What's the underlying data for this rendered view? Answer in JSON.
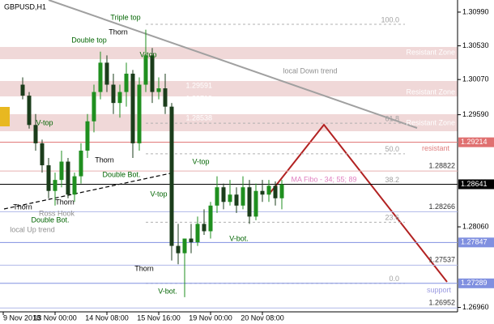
{
  "chart_data": {
    "type": "candlestick",
    "symbol": "GBPUSD,H1",
    "categories": [
      "9 Nov 2018",
      null,
      null,
      null,
      null,
      null,
      null,
      null,
      "13 Nov 00:00",
      null,
      null,
      null,
      null,
      null,
      null,
      null,
      "14 Nov 08:00",
      null,
      null,
      null,
      null,
      null,
      null,
      null,
      "15 Nov 16:00",
      null,
      null,
      null,
      null,
      null,
      null,
      null,
      "19 Nov 00:00",
      null,
      null,
      null,
      null,
      null,
      null,
      null,
      "20 Nov 08:00",
      null,
      null,
      null
    ],
    "open": [
      null,
      null,
      null,
      1.3,
      1.2985,
      1.2945,
      1.292,
      1.289,
      1.2855,
      1.287,
      1.2895,
      1.285,
      1.2875,
      1.291,
      1.295,
      1.299,
      1.303,
      1.3,
      1.2975,
      1.299,
      1.3015,
      1.292,
      1.3,
      1.304,
      1.299,
      1.2995,
      1.297,
      1.278,
      1.277,
      1.279,
      1.2785,
      1.281,
      1.28,
      1.2835,
      1.286,
      1.284,
      1.285,
      1.2835,
      1.286,
      1.282,
      1.2855,
      1.285,
      1.2862,
      1.2845
    ],
    "high": [
      null,
      null,
      null,
      1.301,
      1.299,
      1.296,
      1.2925,
      1.29,
      1.288,
      1.291,
      1.29,
      1.288,
      1.292,
      1.296,
      1.3,
      1.3045,
      1.304,
      1.3015,
      1.3,
      1.303,
      1.302,
      1.301,
      1.3075,
      1.305,
      1.301,
      1.3015,
      1.2975,
      1.281,
      1.279,
      1.281,
      1.282,
      1.283,
      1.284,
      1.2875,
      1.2865,
      1.287,
      1.286,
      1.2875,
      1.287,
      1.2865,
      1.287,
      1.287,
      1.2868,
      1.287
    ],
    "low": [
      null,
      null,
      null,
      1.298,
      1.294,
      1.291,
      1.288,
      1.2845,
      1.2835,
      1.286,
      1.2845,
      1.284,
      1.2865,
      1.29,
      1.2935,
      1.298,
      1.299,
      1.296,
      1.2955,
      1.297,
      1.29,
      1.291,
      1.299,
      1.2975,
      1.298,
      1.296,
      1.276,
      1.2755,
      1.271,
      1.277,
      1.278,
      1.2795,
      1.279,
      1.2825,
      1.283,
      1.2835,
      1.2825,
      1.283,
      1.281,
      1.2815,
      1.284,
      1.284,
      1.2835,
      1.283
    ],
    "close": [
      null,
      null,
      null,
      1.2985,
      1.2945,
      1.292,
      1.289,
      1.2855,
      1.287,
      1.2895,
      1.285,
      1.2875,
      1.291,
      1.295,
      1.299,
      1.303,
      1.3,
      1.2975,
      1.299,
      1.3015,
      1.292,
      1.3,
      1.304,
      1.299,
      1.2995,
      1.297,
      1.278,
      1.277,
      1.279,
      1.2785,
      1.281,
      1.28,
      1.2835,
      1.286,
      1.284,
      1.285,
      1.2835,
      1.286,
      1.282,
      1.2855,
      1.285,
      1.2862,
      1.2845,
      1.2864
    ],
    "up_color": "#1f8f1f",
    "down_color": "#1b3d1b",
    "ylim": [
      1.269,
      1.311
    ],
    "yticks": [
      {
        "value": 1.3099,
        "label": "1.30990"
      },
      {
        "value": 1.3053,
        "label": "1.30530"
      },
      {
        "value": 1.3007,
        "label": "1.30070"
      },
      {
        "value": 1.2959,
        "label": "1.29590"
      },
      {
        "value": 1.2806,
        "label": "1.28060"
      },
      {
        "value": 1.2696,
        "label": "1.26960"
      }
    ],
    "fibo": [
      {
        "label": "100.0",
        "value": 1.30824
      },
      {
        "label": "61.8",
        "value": 1.29474
      },
      {
        "label": "50.0",
        "value": 1.29057
      },
      {
        "label": "38.2",
        "value": 1.28641
      },
      {
        "label": "23.6",
        "value": 1.28123
      },
      {
        "label": "0.0",
        "value": 1.27289
      }
    ],
    "price_levels": [
      1.28822,
      1.28266,
      1.27537,
      1.26952
    ],
    "current_price": 1.28641,
    "resistant": {
      "label": "resistant",
      "value": 1.29214
    },
    "support": {
      "label": "support",
      "value": 1.27289
    },
    "marked_level": 1.27847,
    "zones": [
      "Resistant Zone",
      "Resistant Zone",
      "Resistant Zone"
    ],
    "zone_prices": [
      "1.29591",
      "1.29719",
      "1.28538"
    ],
    "annotations": [
      "Triple top",
      "Thorn",
      "Double top",
      "V-top",
      "V-top",
      "Thorn",
      "Double Bot.",
      "Thorn",
      "Thorn",
      "Ross Hook",
      "Double Bot.",
      "local Up trend",
      "V-top",
      "V-top",
      "V-bot.",
      "Thorn",
      "V-bot.",
      "local Down trend",
      "MA Fibo - 34; 55; 89"
    ]
  }
}
